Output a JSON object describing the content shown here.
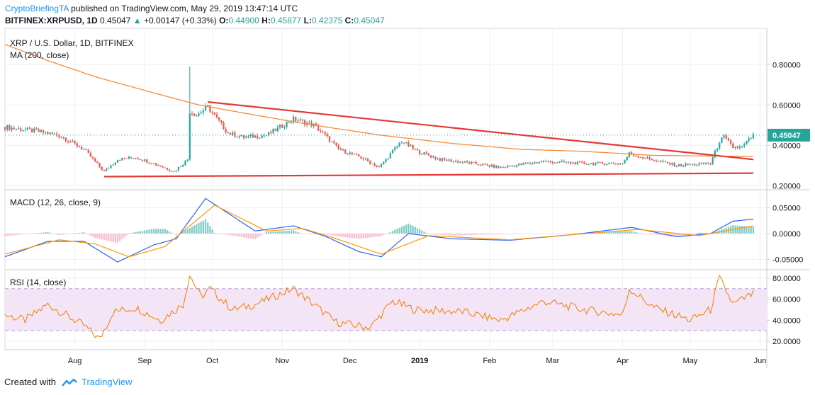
{
  "header": {
    "author": "CryptoBriefingTA",
    "published_text": "published on TradingView.com, May 29, 2019 13:47:14 UTC",
    "symbol_line": "BITFINEX:XRPUSD, 1D",
    "last": "0.45047",
    "change": "+0.00147 (+0.33%)",
    "ohlc": {
      "o": "0.44900",
      "h": "0.45877",
      "l": "0.42375",
      "c": "0.45047"
    }
  },
  "panes": {
    "price_title": "XRP / U.S. Dollar, 1D, BITFINEX",
    "ma_title": "MA (200, close)",
    "macd_title": "MACD (12, 26, close, 9)",
    "rsi_title": "RSI (14, close)",
    "price_badge": "0.45047"
  },
  "footer": {
    "created_with": "Created with",
    "brand": "TradingView"
  },
  "colors": {
    "up": "#26a69a",
    "down": "#ef5350",
    "ma": "#f48c3a",
    "trend": "#e53935",
    "macd": "#2962ff",
    "signal": "#ff9800",
    "rsi": "#f57c00",
    "rsi_band": "#f3e5f5",
    "grid": "#eef0f3",
    "badge": "#26a69a"
  },
  "chart_data": [
    {
      "type": "candlestick",
      "title": "XRP / U.S. Dollar, 1D, BITFINEX",
      "x_ticks": [
        "Aug",
        "Sep",
        "Oct",
        "Nov",
        "Dec",
        "2019",
        "Feb",
        "Mar",
        "Apr",
        "May",
        "Jun"
      ],
      "y_ticks": [
        "0.20000",
        "0.40000",
        "0.60000",
        "0.80000"
      ],
      "ylim": [
        0.18,
        0.98
      ],
      "price_path": [
        [
          "2018-07-01",
          0.49
        ],
        [
          "2018-07-15",
          0.47
        ],
        [
          "2018-07-25",
          0.45
        ],
        [
          "2018-08-05",
          0.38
        ],
        [
          "2018-08-14",
          0.27
        ],
        [
          "2018-08-20",
          0.33
        ],
        [
          "2018-08-28",
          0.34
        ],
        [
          "2018-09-05",
          0.31
        ],
        [
          "2018-09-14",
          0.27
        ],
        [
          "2018-09-20",
          0.33
        ],
        [
          "2018-09-21",
          0.57
        ],
        [
          "2018-09-24",
          0.55
        ],
        [
          "2018-09-29",
          0.59
        ],
        [
          "2018-10-08",
          0.46
        ],
        [
          "2018-10-15",
          0.44
        ],
        [
          "2018-10-25",
          0.45
        ],
        [
          "2018-11-06",
          0.53
        ],
        [
          "2018-11-15",
          0.5
        ],
        [
          "2018-11-20",
          0.45
        ],
        [
          "2018-11-26",
          0.38
        ],
        [
          "2018-12-06",
          0.34
        ],
        [
          "2018-12-14",
          0.29
        ],
        [
          "2018-12-20",
          0.37
        ],
        [
          "2018-12-24",
          0.42
        ],
        [
          "2018-12-31",
          0.37
        ],
        [
          "2019-01-10",
          0.33
        ],
        [
          "2019-01-25",
          0.31
        ],
        [
          "2019-02-06",
          0.29
        ],
        [
          "2019-02-24",
          0.32
        ],
        [
          "2019-03-15",
          0.31
        ],
        [
          "2019-04-01",
          0.31
        ],
        [
          "2019-04-04",
          0.36
        ],
        [
          "2019-04-10",
          0.34
        ],
        [
          "2019-04-25",
          0.3
        ],
        [
          "2019-05-10",
          0.31
        ],
        [
          "2019-05-14",
          0.42
        ],
        [
          "2019-05-16",
          0.44
        ],
        [
          "2019-05-20",
          0.39
        ],
        [
          "2019-05-24",
          0.39
        ],
        [
          "2019-05-29",
          0.45
        ]
      ],
      "highs": [
        [
          "2018-09-21",
          0.79
        ]
      ],
      "ma200": [
        [
          "2018-07-01",
          0.9
        ],
        [
          "2018-07-20",
          0.82
        ],
        [
          "2018-08-10",
          0.74
        ],
        [
          "2018-09-05",
          0.66
        ],
        [
          "2018-09-25",
          0.6
        ],
        [
          "2018-10-20",
          0.55
        ],
        [
          "2018-11-15",
          0.5
        ],
        [
          "2018-12-15",
          0.45
        ],
        [
          "2019-01-15",
          0.41
        ],
        [
          "2019-02-15",
          0.38
        ],
        [
          "2019-03-15",
          0.37
        ],
        [
          "2019-04-15",
          0.35
        ],
        [
          "2019-05-29",
          0.345
        ]
      ],
      "trendlines": [
        {
          "from": [
            "2018-09-29",
            0.615
          ],
          "to": [
            "2019-05-29",
            0.33
          ]
        },
        {
          "from": [
            "2018-08-14",
            0.245
          ],
          "to": [
            "2019-05-29",
            0.262
          ]
        }
      ],
      "last": 0.45047
    },
    {
      "type": "line",
      "title": "MACD (12, 26, close, 9)",
      "y_ticks": [
        "0.05000",
        "0.00000",
        "-0.05000"
      ],
      "ylim": [
        -0.07,
        0.085
      ],
      "series": [
        {
          "name": "MACD",
          "values": [
            [
              "2018-07-01",
              -0.045
            ],
            [
              "2018-07-20",
              -0.015
            ],
            [
              "2018-08-05",
              -0.015
            ],
            [
              "2018-08-20",
              -0.055
            ],
            [
              "2018-09-05",
              -0.022
            ],
            [
              "2018-09-15",
              -0.01
            ],
            [
              "2018-09-28",
              0.068
            ],
            [
              "2018-10-20",
              0.005
            ],
            [
              "2018-11-06",
              0.015
            ],
            [
              "2018-11-20",
              -0.005
            ],
            [
              "2018-12-05",
              -0.035
            ],
            [
              "2018-12-15",
              -0.045
            ],
            [
              "2018-12-27",
              0.0
            ],
            [
              "2019-01-15",
              -0.01
            ],
            [
              "2019-02-10",
              -0.013
            ],
            [
              "2019-03-10",
              -0.002
            ],
            [
              "2019-04-05",
              0.012
            ],
            [
              "2019-04-25",
              -0.006
            ],
            [
              "2019-05-10",
              0.0
            ],
            [
              "2019-05-20",
              0.024
            ],
            [
              "2019-05-29",
              0.028
            ]
          ]
        },
        {
          "name": "Signal",
          "values": [
            [
              "2018-07-01",
              -0.04
            ],
            [
              "2018-07-25",
              -0.012
            ],
            [
              "2018-08-10",
              -0.02
            ],
            [
              "2018-08-25",
              -0.045
            ],
            [
              "2018-09-10",
              -0.025
            ],
            [
              "2018-10-02",
              0.055
            ],
            [
              "2018-10-25",
              0.005
            ],
            [
              "2018-11-10",
              0.01
            ],
            [
              "2018-11-25",
              -0.01
            ],
            [
              "2018-12-15",
              -0.04
            ],
            [
              "2019-01-05",
              -0.004
            ],
            [
              "2019-02-10",
              -0.012
            ],
            [
              "2019-03-10",
              -0.002
            ],
            [
              "2019-04-08",
              0.008
            ],
            [
              "2019-05-05",
              -0.004
            ],
            [
              "2019-05-29",
              0.015
            ]
          ]
        }
      ]
    },
    {
      "type": "line",
      "title": "RSI (14, close)",
      "y_ticks": [
        "20.0000",
        "40.0000",
        "60.0000",
        "80.0000"
      ],
      "ylim": [
        12,
        88
      ],
      "band": [
        30,
        70
      ],
      "series": [
        {
          "name": "RSI",
          "values": [
            [
              "2018-07-01",
              45
            ],
            [
              "2018-07-10",
              40
            ],
            [
              "2018-07-20",
              55
            ],
            [
              "2018-08-05",
              35
            ],
            [
              "2018-08-12",
              22
            ],
            [
              "2018-08-18",
              48
            ],
            [
              "2018-08-28",
              52
            ],
            [
              "2018-09-08",
              40
            ],
            [
              "2018-09-18",
              55
            ],
            [
              "2018-09-21",
              83
            ],
            [
              "2018-09-26",
              62
            ],
            [
              "2018-09-30",
              70
            ],
            [
              "2018-10-10",
              50
            ],
            [
              "2018-10-20",
              55
            ],
            [
              "2018-11-06",
              70
            ],
            [
              "2018-11-15",
              55
            ],
            [
              "2018-11-25",
              38
            ],
            [
              "2018-12-10",
              33
            ],
            [
              "2018-12-20",
              58
            ],
            [
              "2018-12-30",
              50
            ],
            [
              "2019-01-20",
              48
            ],
            [
              "2019-02-06",
              40
            ],
            [
              "2019-02-25",
              58
            ],
            [
              "2019-03-15",
              50
            ],
            [
              "2019-04-01",
              45
            ],
            [
              "2019-04-04",
              70
            ],
            [
              "2019-04-15",
              52
            ],
            [
              "2019-05-01",
              40
            ],
            [
              "2019-05-10",
              50
            ],
            [
              "2019-05-14",
              80
            ],
            [
              "2019-05-20",
              55
            ],
            [
              "2019-05-29",
              65
            ]
          ]
        }
      ]
    }
  ]
}
